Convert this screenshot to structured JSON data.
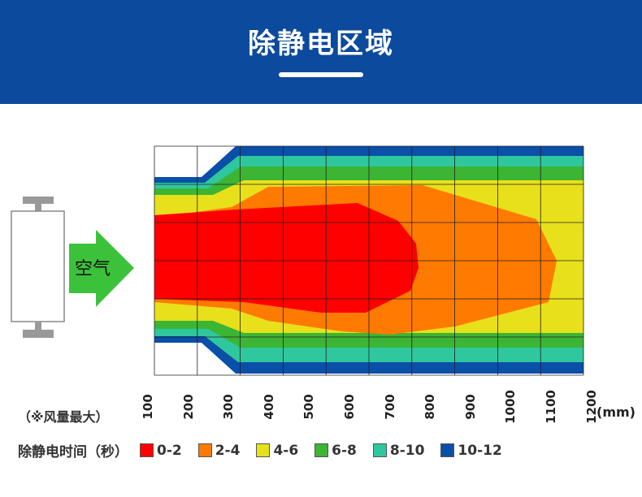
{
  "header": {
    "title": "除静电区域"
  },
  "diagram": {
    "air_label": "空气",
    "note": "（※风量最大）",
    "x_unit": "(mm)",
    "x_ticks": [
      "100",
      "200",
      "300",
      "400",
      "500",
      "600",
      "700",
      "800",
      "900",
      "1000",
      "1100",
      "1200"
    ],
    "legend_title": "除静电时间（秒）",
    "legend": [
      {
        "label": "0-2",
        "color": "#ff0000"
      },
      {
        "label": "2-4",
        "color": "#ff7a00"
      },
      {
        "label": "4-6",
        "color": "#e8e01a"
      },
      {
        "label": "6-8",
        "color": "#3cb534"
      },
      {
        "label": "8-10",
        "color": "#2fc79e"
      },
      {
        "label": "10-12",
        "color": "#0a4fa8"
      }
    ],
    "arrow_color": "#3cc23a",
    "header_color": "#0b4a9c"
  }
}
